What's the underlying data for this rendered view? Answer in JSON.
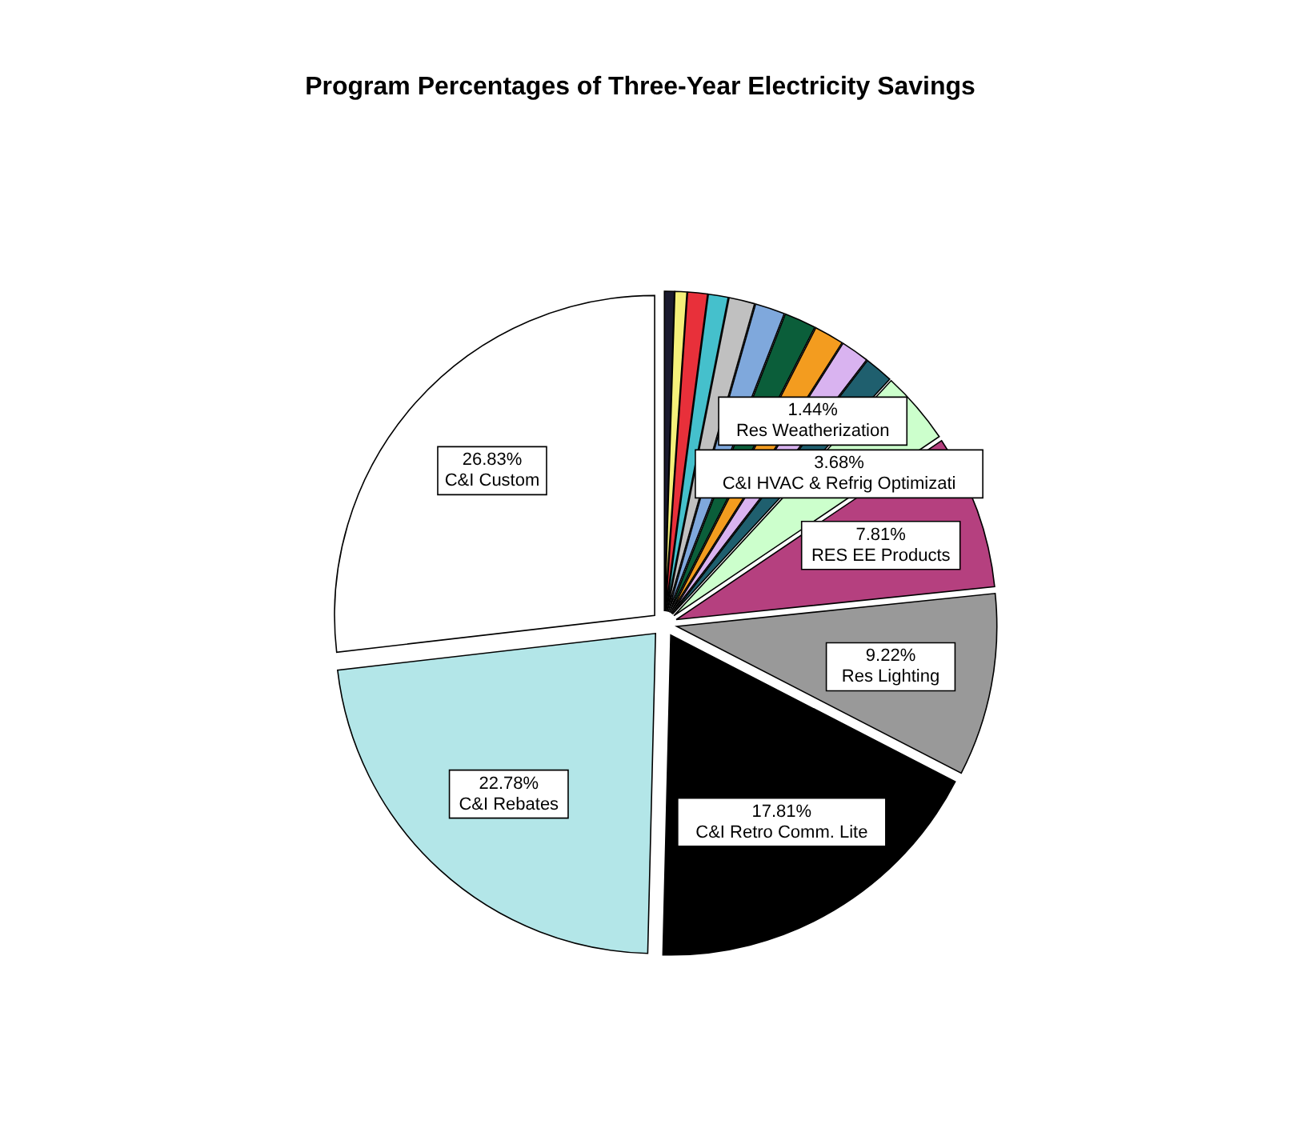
{
  "chart_data": {
    "type": "pie",
    "title": "Program Percentages of Three-Year Electricity Savings",
    "categories": [
      null,
      null,
      null,
      null,
      null,
      null,
      null,
      null,
      null,
      "Res Weatherization",
      "C&I HVAC & Refrig Optimizati",
      "RES EE Products",
      "Res Lighting",
      "C&I Retro Comm. Lite",
      "C&I Rebates",
      "C&I Custom"
    ],
    "values": [
      0.5,
      0.6,
      1.0,
      1.0,
      1.3,
      1.5,
      1.6,
      1.5,
      1.43,
      1.44,
      3.68,
      7.81,
      9.22,
      17.81,
      22.78,
      26.83
    ],
    "value_labels": [
      null,
      null,
      null,
      null,
      null,
      null,
      null,
      null,
      null,
      "1.44%",
      "3.68%",
      "7.81%",
      "9.22%",
      "17.81%",
      "22.78%",
      "26.83%"
    ],
    "colors": [
      "#1a1a2e",
      "#f5f07a",
      "#e8303a",
      "#45c0cc",
      "#c0c0c0",
      "#7fa8dc",
      "#0b5e3a",
      "#f39c1f",
      "#d9b3f0",
      "#1f5f6e",
      "#ccffcc",
      "#b5407f",
      "#999999",
      "#000000",
      "#b3e6e8",
      "#ffffff"
    ]
  }
}
